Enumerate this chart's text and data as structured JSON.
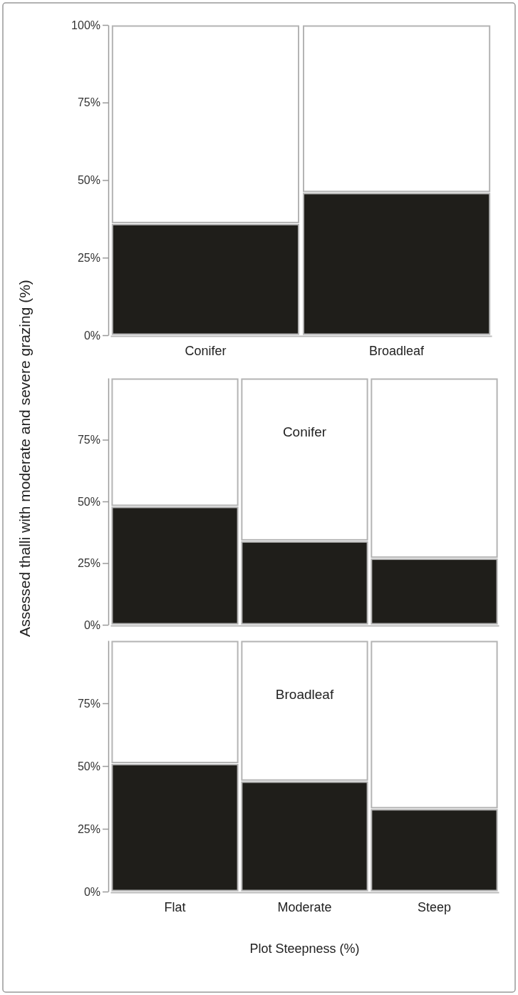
{
  "chart_data": [
    {
      "type": "bar",
      "stacked": true,
      "categories": [
        "Conifer",
        "Broadleaf"
      ],
      "ylabel": "Assessed thalli with moderate and severe grazing (%)",
      "ylim": [
        0,
        100
      ],
      "yticks": [
        {
          "value": 0,
          "label": "0%"
        },
        {
          "value": 25,
          "label": "25%"
        },
        {
          "value": 50,
          "label": "50%"
        },
        {
          "value": 75,
          "label": "75%"
        },
        {
          "value": 100,
          "label": "100%"
        }
      ],
      "series": [
        {
          "color": "#1f1e1a",
          "values": [
            36,
            46
          ]
        },
        {
          "color": "#ffffff",
          "values": [
            64,
            54
          ]
        }
      ]
    },
    {
      "type": "bar",
      "stacked": true,
      "title": "Conifer",
      "categories": [
        null,
        null,
        null
      ],
      "tick_labels": "y",
      "ylim": [
        0,
        100
      ],
      "yticks": [
        {
          "value": 0,
          "label": "0%"
        },
        {
          "value": 25,
          "label": "25%"
        },
        {
          "value": 50,
          "label": "50%"
        },
        {
          "value": 75,
          "label": "75%"
        }
      ],
      "series": [
        {
          "color": "#1f1e1a",
          "values": [
            48,
            34,
            27
          ]
        },
        {
          "color": "#ffffff",
          "values": [
            52,
            66,
            73
          ]
        }
      ]
    },
    {
      "type": "bar",
      "stacked": true,
      "title": "Broadleaf",
      "categories": [
        "Flat",
        "Moderate",
        "Steep"
      ],
      "xlabel": "Plot Steepness (%)",
      "ylim": [
        0,
        100
      ],
      "yticks": [
        {
          "value": 0,
          "label": "0%"
        },
        {
          "value": 25,
          "label": "25%"
        },
        {
          "value": 50,
          "label": "50%"
        },
        {
          "value": 75,
          "label": "75%"
        }
      ],
      "series": [
        {
          "color": "#1f1e1a",
          "values": [
            51,
            44,
            33
          ]
        },
        {
          "color": "#ffffff",
          "values": [
            49,
            56,
            67
          ]
        }
      ]
    }
  ]
}
